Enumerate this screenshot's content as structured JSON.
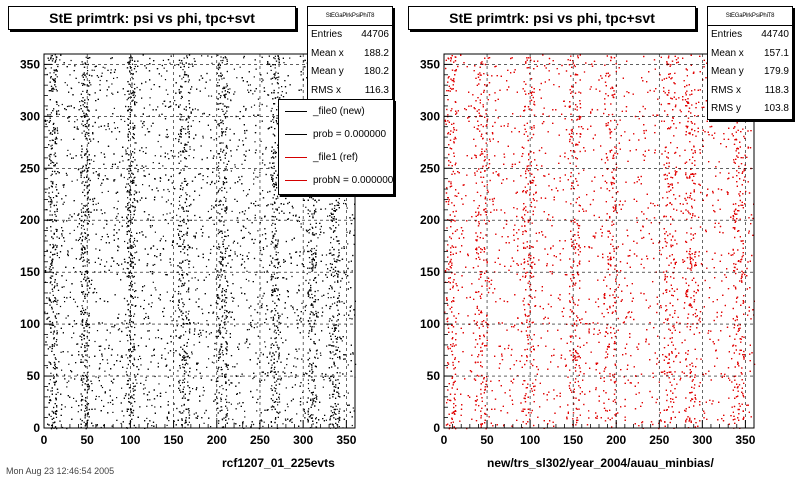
{
  "footer_text": "Mon Aug 23 12:46:54 2005",
  "chart_data": [
    {
      "type": "scatter",
      "title": "StE primtrk: psi vs phi, tpc+svt",
      "stats_header": "StEGaPlrkPsiPhiT8",
      "stats": [
        {
          "label": "Entries",
          "value": "44706"
        },
        {
          "label": "Mean x",
          "value": "188.2"
        },
        {
          "label": "Mean y",
          "value": "180.2"
        },
        {
          "label": "RMS x",
          "value": "116.3"
        }
      ],
      "legend": [
        {
          "label": "_file0 (new)",
          "color": "#000000"
        },
        {
          "label": "prob = 0.000000",
          "color": "#000000"
        },
        {
          "label": "_file1 (ref)",
          "color": "#d40000"
        },
        {
          "label": "probN = 0.000000",
          "color": "#d40000"
        }
      ],
      "xlim": [
        0,
        360
      ],
      "ylim": [
        0,
        360
      ],
      "xticks": [
        0,
        50,
        100,
        150,
        200,
        250,
        300,
        350
      ],
      "yticks": [
        0,
        50,
        100,
        150,
        200,
        250,
        300,
        350
      ],
      "xtick_labels": [
        "0",
        "50",
        "100",
        "150",
        "200",
        "250",
        "300",
        "350"
      ],
      "ytick_labels": [
        "0",
        "50",
        "100",
        "150",
        "200",
        "250",
        "300",
        "350"
      ],
      "xlabel": "rcf1207_01_225evts",
      "ylabel": "",
      "grid": true,
      "marker_color": "#000000",
      "entries": 44706,
      "dense_phi_bands": [
        [
          5,
          15
        ],
        [
          42,
          52
        ],
        [
          95,
          105
        ],
        [
          155,
          168
        ],
        [
          200,
          212
        ],
        [
          262,
          272
        ],
        [
          305,
          315
        ],
        [
          330,
          342
        ]
      ]
    },
    {
      "type": "scatter",
      "title": "StE primtrk: psi vs phi, tpc+svt",
      "stats_header": "StEGaPlrkPsiPhiT8",
      "stats": [
        {
          "label": "Entries",
          "value": "44740"
        },
        {
          "label": "Mean x",
          "value": "157.1"
        },
        {
          "label": "Mean y",
          "value": "179.9"
        },
        {
          "label": "RMS x",
          "value": "118.3"
        },
        {
          "label": "RMS y",
          "value": "103.8"
        }
      ],
      "xlim": [
        0,
        360
      ],
      "ylim": [
        0,
        360
      ],
      "xticks": [
        0,
        50,
        100,
        150,
        200,
        250,
        300,
        350
      ],
      "yticks": [
        0,
        50,
        100,
        150,
        200,
        250,
        300,
        350
      ],
      "xtick_labels": [
        "0",
        "50",
        "100",
        "150",
        "200",
        "250",
        "300",
        "350"
      ],
      "ytick_labels": [
        "0",
        "50",
        "100",
        "150",
        "200",
        "250",
        "300",
        "350"
      ],
      "xlabel": "new/trs_sl302/year_2004/auau_minbias/",
      "ylabel": "",
      "grid": true,
      "marker_color": "#e00000",
      "entries": 44740,
      "dense_phi_bands": [
        [
          2,
          14
        ],
        [
          35,
          50
        ],
        [
          90,
          105
        ],
        [
          145,
          158
        ],
        [
          185,
          200
        ],
        [
          255,
          270
        ],
        [
          280,
          292
        ],
        [
          335,
          348
        ]
      ]
    }
  ]
}
